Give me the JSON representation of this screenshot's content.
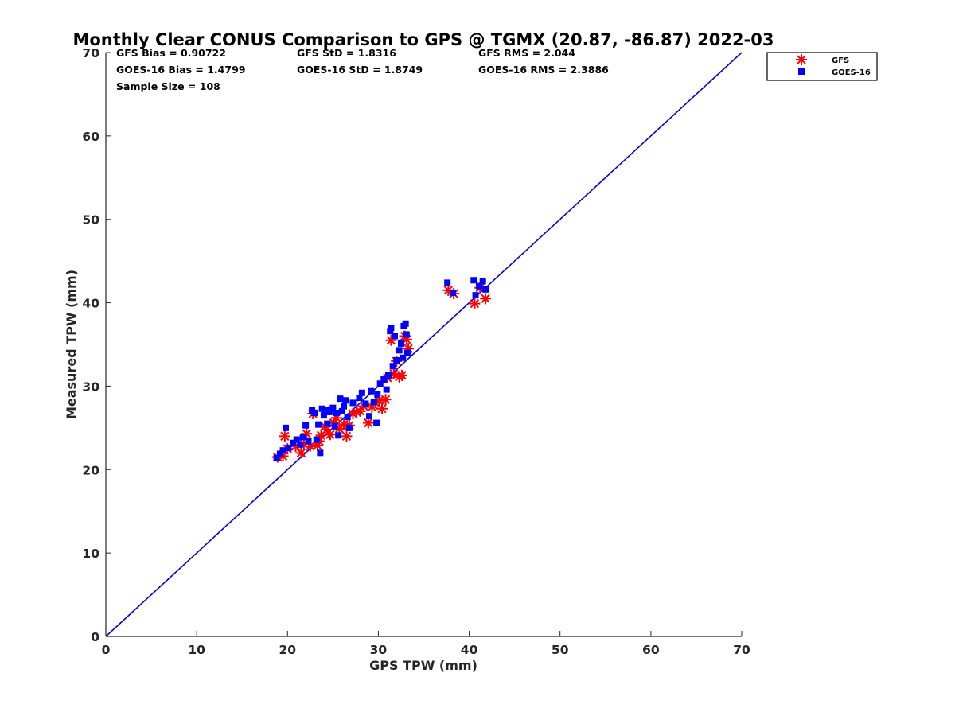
{
  "chart_data": {
    "type": "scatter",
    "title": "Monthly Clear CONUS Comparison to GPS @ TGMX (20.87, -86.87) 2022-03",
    "xlabel": "GPS TPW (mm)",
    "ylabel": "Measured TPW (mm)",
    "xlim": [
      0,
      70
    ],
    "ylim": [
      0,
      70
    ],
    "xticks": [
      0,
      10,
      20,
      30,
      40,
      50,
      60,
      70
    ],
    "yticks": [
      0,
      10,
      20,
      30,
      40,
      50,
      60,
      70
    ],
    "grid": false,
    "legend_position": "outside-top-right",
    "stats": {
      "gfs_bias": "GFS Bias = 0.90722",
      "gfs_std": "GFS StD = 1.8316",
      "gfs_rms": "GFS RMS = 2.044",
      "goes_bias": "GOES-16 Bias = 1.4799",
      "goes_std": "GOES-16 StD = 1.8749",
      "goes_rms": "GOES-16 RMS = 2.3886",
      "sample_size": "Sample Size = 108"
    },
    "reference_line": {
      "name": "1:1 line",
      "x": [
        0,
        70
      ],
      "y": [
        0,
        70
      ],
      "color": "#0000dd"
    },
    "series": [
      {
        "name": "GFS",
        "marker": "asterisk",
        "color": "#ff0000",
        "points": [
          [
            18.9,
            21.5
          ],
          [
            19.5,
            21.6
          ],
          [
            19.7,
            24.0
          ],
          [
            20.0,
            22.5
          ],
          [
            20.9,
            22.8
          ],
          [
            21.5,
            22.0
          ],
          [
            21.8,
            23.1
          ],
          [
            22.1,
            24.3
          ],
          [
            22.5,
            22.8
          ],
          [
            22.8,
            26.7
          ],
          [
            23.3,
            22.9
          ],
          [
            23.5,
            23.4
          ],
          [
            23.7,
            24.1
          ],
          [
            24.1,
            25.2
          ],
          [
            24.3,
            24.8
          ],
          [
            24.7,
            24.2
          ],
          [
            25.1,
            25.6
          ],
          [
            25.4,
            26.2
          ],
          [
            25.7,
            24.9
          ],
          [
            26.2,
            25.4
          ],
          [
            26.5,
            24.0
          ],
          [
            26.8,
            25.3
          ],
          [
            27.2,
            26.7
          ],
          [
            27.6,
            26.9
          ],
          [
            28.0,
            27.0
          ],
          [
            28.4,
            27.6
          ],
          [
            28.9,
            25.6
          ],
          [
            29.3,
            27.5
          ],
          [
            29.7,
            28.0
          ],
          [
            30.1,
            28.3
          ],
          [
            30.4,
            27.3
          ],
          [
            30.8,
            28.4
          ],
          [
            31.0,
            31.0
          ],
          [
            31.4,
            35.5
          ],
          [
            31.7,
            31.5
          ],
          [
            32.0,
            33.0
          ],
          [
            32.3,
            31.1
          ],
          [
            32.6,
            31.3
          ],
          [
            32.9,
            36.0
          ],
          [
            33.1,
            35.6
          ],
          [
            33.3,
            34.5
          ],
          [
            37.7,
            41.5
          ],
          [
            38.3,
            41.1
          ],
          [
            40.6,
            39.9
          ],
          [
            41.2,
            41.8
          ],
          [
            41.8,
            40.5
          ]
        ]
      },
      {
        "name": "GOES-16",
        "marker": "square",
        "color": "#0000ff",
        "points": [
          [
            18.8,
            21.4
          ],
          [
            19.2,
            21.9
          ],
          [
            19.5,
            22.3
          ],
          [
            19.8,
            25.0
          ],
          [
            20.1,
            22.6
          ],
          [
            20.6,
            23.2
          ],
          [
            21.0,
            23.6
          ],
          [
            21.4,
            23.0
          ],
          [
            21.7,
            23.9
          ],
          [
            22.0,
            25.3
          ],
          [
            22.3,
            23.4
          ],
          [
            22.7,
            27.1
          ],
          [
            23.0,
            26.8
          ],
          [
            23.2,
            23.6
          ],
          [
            23.4,
            25.4
          ],
          [
            23.6,
            22.0
          ],
          [
            23.8,
            27.3
          ],
          [
            24.0,
            26.5
          ],
          [
            24.2,
            27.1
          ],
          [
            24.4,
            25.5
          ],
          [
            24.6,
            26.9
          ],
          [
            24.8,
            27.2
          ],
          [
            25.0,
            27.4
          ],
          [
            25.2,
            25.2
          ],
          [
            25.4,
            26.8
          ],
          [
            25.6,
            24.1
          ],
          [
            25.8,
            28.5
          ],
          [
            26.0,
            27.0
          ],
          [
            26.2,
            27.6
          ],
          [
            26.4,
            28.3
          ],
          [
            26.6,
            26.3
          ],
          [
            26.8,
            25.0
          ],
          [
            27.2,
            28.0
          ],
          [
            27.9,
            28.6
          ],
          [
            28.2,
            29.2
          ],
          [
            28.6,
            27.9
          ],
          [
            29.0,
            26.4
          ],
          [
            29.2,
            29.4
          ],
          [
            29.5,
            28.1
          ],
          [
            29.8,
            25.6
          ],
          [
            29.9,
            29.0
          ],
          [
            30.2,
            30.3
          ],
          [
            30.6,
            30.8
          ],
          [
            30.9,
            29.6
          ],
          [
            31.1,
            31.3
          ],
          [
            31.3,
            36.6
          ],
          [
            31.4,
            37.0
          ],
          [
            31.6,
            32.4
          ],
          [
            31.8,
            36.0
          ],
          [
            32.0,
            33.1
          ],
          [
            32.3,
            34.3
          ],
          [
            32.5,
            35.1
          ],
          [
            32.7,
            33.4
          ],
          [
            32.8,
            37.2
          ],
          [
            33.0,
            37.5
          ],
          [
            33.1,
            36.2
          ],
          [
            33.2,
            34.0
          ],
          [
            37.6,
            42.4
          ],
          [
            38.2,
            41.2
          ],
          [
            40.5,
            42.7
          ],
          [
            40.7,
            40.9
          ],
          [
            41.1,
            42.0
          ],
          [
            41.5,
            42.6
          ],
          [
            41.8,
            41.6
          ]
        ]
      }
    ]
  }
}
